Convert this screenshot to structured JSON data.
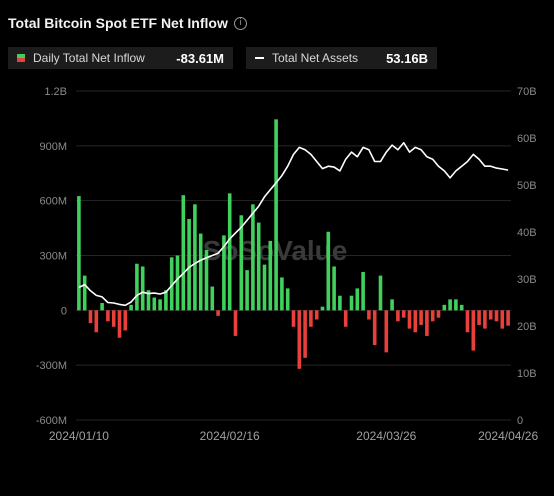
{
  "header": {
    "title": "Total Bitcoin Spot ETF Net Inflow",
    "info_icon": "info-icon"
  },
  "legend": {
    "inflow_label": "Daily Total Net Inflow",
    "inflow_value": "-83.61M",
    "assets_label": "Total Net Assets",
    "assets_value": "53.16B"
  },
  "watermark": "SoSoValue",
  "colors": {
    "positive": "#3fd15c",
    "negative": "#e8413c",
    "line": "#ffffff",
    "background": "#000000"
  },
  "chart_data": {
    "type": "bar",
    "left_axis": {
      "ticks": [
        "1.2B",
        "900M",
        "600M",
        "300M",
        "0",
        "-300M",
        "-600M"
      ],
      "ylim": [
        -600,
        1200
      ],
      "unit": "M"
    },
    "right_axis": {
      "ticks": [
        "70B",
        "60B",
        "50B",
        "40B",
        "30B",
        "20B",
        "10B",
        "0"
      ],
      "ylim": [
        0,
        70
      ],
      "unit": "B"
    },
    "x_tick_labels": [
      "2024/01/10",
      "2024/02/16",
      "2024/03/26",
      "2024/04/26"
    ],
    "x_tick_index": [
      0,
      26,
      53,
      74
    ],
    "series": [
      {
        "name": "Daily Total Net Inflow",
        "type": "bar",
        "values": [
          625,
          190,
          -70,
          -120,
          40,
          -60,
          -90,
          -150,
          -110,
          30,
          255,
          240,
          110,
          70,
          60,
          110,
          290,
          300,
          630,
          500,
          580,
          420,
          330,
          130,
          -30,
          410,
          640,
          -140,
          520,
          220,
          580,
          480,
          250,
          380,
          1045,
          180,
          120,
          -90,
          -320,
          -260,
          -90,
          -50,
          20,
          430,
          240,
          80,
          -90,
          80,
          120,
          210,
          -50,
          -190,
          190,
          -230,
          60,
          -60,
          -40,
          -100,
          -120,
          -80,
          -140,
          -60,
          -40,
          30,
          60,
          60,
          30,
          -120,
          -220,
          -80,
          -100,
          -50,
          -60,
          -100,
          -84
        ]
      },
      {
        "name": "Total Net Assets",
        "type": "line",
        "values": [
          28.2,
          28.8,
          27.5,
          26.5,
          26.2,
          25.0,
          24.9,
          24.6,
          24.4,
          25.1,
          26.5,
          27.2,
          26.9,
          27.0,
          26.8,
          27.2,
          28.6,
          30.0,
          31.2,
          32.5,
          33.3,
          34.0,
          34.5,
          35.0,
          35.5,
          36.9,
          38.5,
          39.8,
          41.0,
          42.5,
          44.0,
          45.5,
          47.5,
          49.0,
          50.5,
          52.0,
          54.0,
          56.5,
          58.0,
          57.5,
          56.5,
          55.0,
          53.5,
          54.0,
          53.8,
          53.0,
          55.5,
          57.0,
          56.0,
          58.0,
          57.5,
          55.0,
          55.0,
          57.0,
          58.5,
          57.5,
          59.0,
          57.0,
          58.0,
          57.5,
          56.0,
          55.5,
          54.0,
          53.0,
          51.5,
          53.0,
          54.0,
          55.0,
          56.5,
          55.5,
          54.0,
          54.0,
          53.6,
          53.4,
          53.16
        ]
      }
    ]
  }
}
